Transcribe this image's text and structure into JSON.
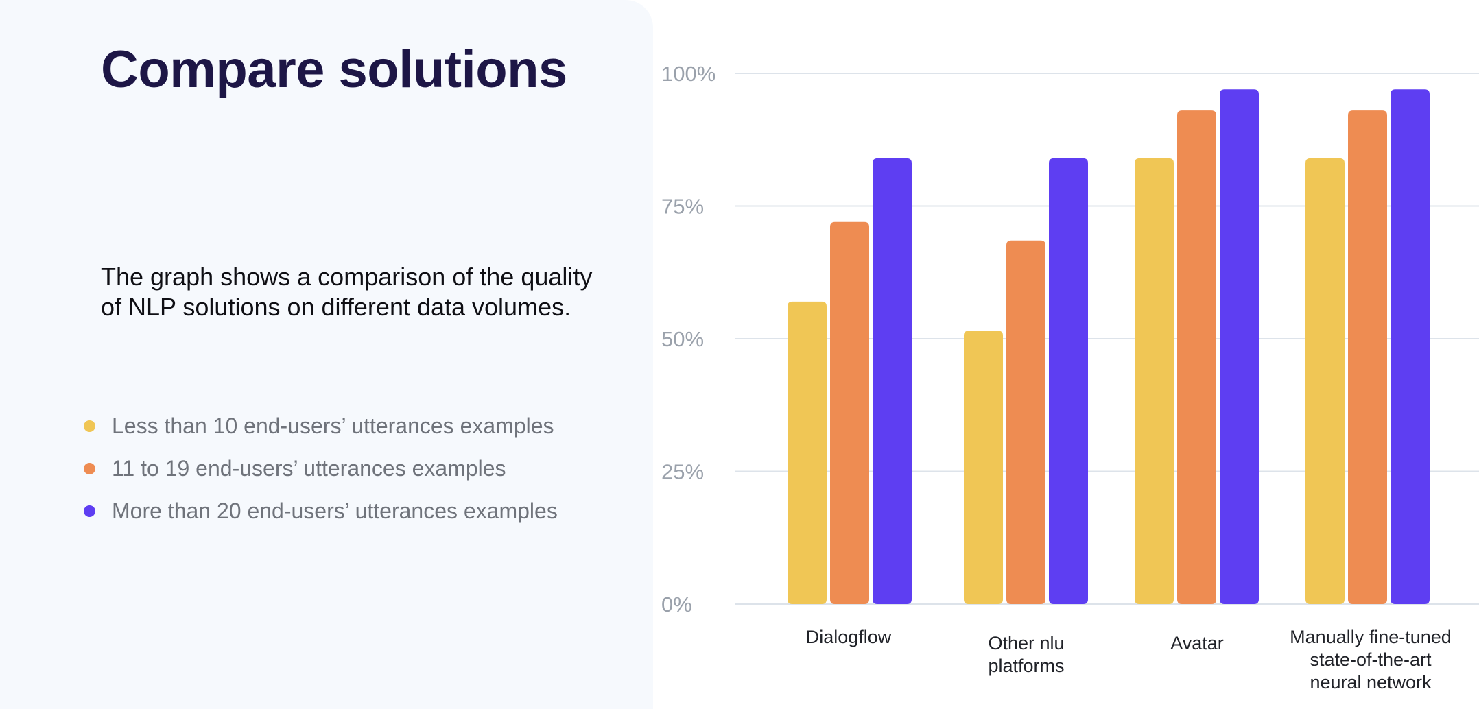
{
  "page": {
    "title": "Compare solutions",
    "description": "The graph shows a comparison of the quality of NLP solutions on different data volumes."
  },
  "legend": [
    {
      "label": "Less than 10 end-users’ utterances examples",
      "color": "#f0c655"
    },
    {
      "label": "11 to 19 end-users’ utterances examples",
      "color": "#ee8c52"
    },
    {
      "label": "More than 20 end-users’ utterances examples",
      "color": "#5e3ef2"
    }
  ],
  "chart_data": {
    "type": "bar",
    "categories": [
      [
        "Dialogflow"
      ],
      [
        "Other nlu",
        "platforms"
      ],
      [
        "Avatar"
      ],
      [
        "Manually fine-tuned",
        "state-of-the-art",
        "neural network"
      ]
    ],
    "series": [
      {
        "name": "Less than 10 end-users’ utterances examples",
        "color": "#f0c655",
        "values": [
          57,
          51.5,
          84,
          84
        ]
      },
      {
        "name": "11 to 19 end-users’ utterances examples",
        "color": "#ee8c52",
        "values": [
          72,
          68.5,
          93,
          93
        ]
      },
      {
        "name": "More than 20 end-users’ utterances examples",
        "color": "#5e3ef2",
        "values": [
          84,
          84,
          97,
          97
        ]
      }
    ],
    "yticks": [
      "0%",
      "25%",
      "50%",
      "75%",
      "100%"
    ],
    "ytick_values": [
      0,
      25,
      50,
      75,
      100
    ],
    "ylim": [
      0,
      100
    ],
    "grid": true,
    "gridColor": "#dde3ea"
  }
}
